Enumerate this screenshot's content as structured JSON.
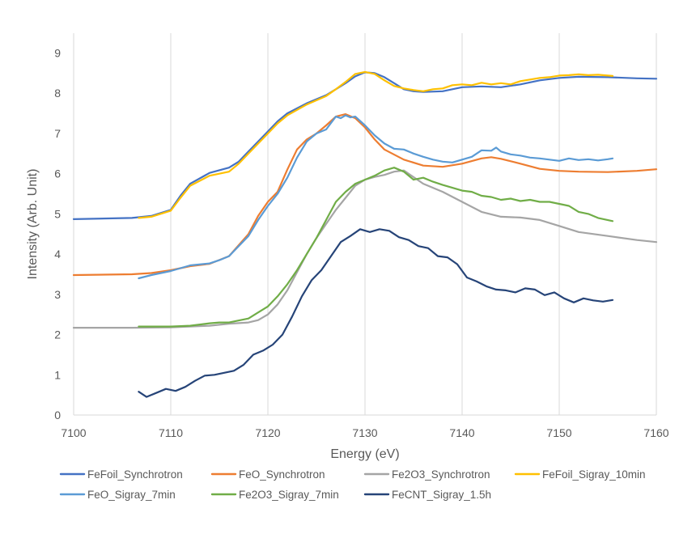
{
  "chart_data": {
    "type": "line",
    "title": "",
    "xlabel": "Energy (eV)",
    "ylabel": "Intensity (Arb. Unit)",
    "xlim": [
      7100,
      7160
    ],
    "ylim": [
      0,
      9.5
    ],
    "xticks": [
      "7100",
      "7110",
      "7120",
      "7130",
      "7140",
      "7150",
      "7160"
    ],
    "yticks": [
      "0",
      "1",
      "2",
      "3",
      "4",
      "5",
      "6",
      "7",
      "8",
      "9"
    ],
    "grid": "vertical",
    "legend_position": "bottom",
    "series": [
      {
        "name": "FeFoil_Synchrotron",
        "color": "#4472C4",
        "x": [
          7100,
          7106,
          7108,
          7110,
          7111,
          7112,
          7114,
          7116,
          7117,
          7118,
          7119,
          7120,
          7121,
          7122,
          7124,
          7126,
          7127,
          7128,
          7129,
          7130,
          7131,
          7132,
          7133,
          7134,
          7135,
          7136,
          7138,
          7140,
          7142,
          7144,
          7146,
          7148,
          7150,
          7152,
          7155,
          7158,
          7160
        ],
        "y": [
          4.87,
          4.9,
          4.95,
          5.1,
          5.45,
          5.75,
          6.02,
          6.15,
          6.3,
          6.55,
          6.8,
          7.05,
          7.3,
          7.5,
          7.75,
          7.95,
          8.1,
          8.25,
          8.42,
          8.52,
          8.5,
          8.4,
          8.25,
          8.1,
          8.05,
          8.03,
          8.05,
          8.15,
          8.17,
          8.15,
          8.22,
          8.32,
          8.38,
          8.41,
          8.4,
          8.37,
          8.36
        ]
      },
      {
        "name": "FeO_Synchrotron",
        "color": "#ED7D31",
        "x": [
          7100,
          7106,
          7108,
          7110,
          7112,
          7114,
          7116,
          7118,
          7119,
          7120,
          7121,
          7122,
          7123,
          7124,
          7125,
          7126,
          7127,
          7128,
          7129,
          7130,
          7131,
          7132,
          7134,
          7136,
          7138,
          7140,
          7142,
          7143,
          7144,
          7146,
          7148,
          7150,
          7152,
          7155,
          7158,
          7160
        ],
        "y": [
          3.48,
          3.5,
          3.53,
          3.6,
          3.7,
          3.76,
          3.95,
          4.5,
          4.95,
          5.3,
          5.55,
          6.1,
          6.6,
          6.85,
          7.0,
          7.2,
          7.42,
          7.48,
          7.38,
          7.15,
          6.85,
          6.6,
          6.35,
          6.2,
          6.17,
          6.25,
          6.38,
          6.41,
          6.37,
          6.25,
          6.12,
          6.07,
          6.05,
          6.04,
          6.07,
          6.11
        ]
      },
      {
        "name": "Fe2O3_Synchrotron",
        "color": "#A5A5A5",
        "x": [
          7100,
          7106,
          7110,
          7114,
          7116,
          7118,
          7119,
          7120,
          7121,
          7122,
          7123,
          7124,
          7125,
          7126,
          7127,
          7128,
          7129,
          7130,
          7131,
          7132,
          7133,
          7134,
          7136,
          7138,
          7140,
          7142,
          7144,
          7146,
          7148,
          7150,
          7152,
          7155,
          7158,
          7160
        ],
        "y": [
          2.17,
          2.17,
          2.18,
          2.22,
          2.27,
          2.3,
          2.36,
          2.5,
          2.75,
          3.1,
          3.55,
          4.0,
          4.4,
          4.75,
          5.1,
          5.4,
          5.7,
          5.85,
          5.92,
          5.97,
          6.05,
          6.08,
          5.75,
          5.55,
          5.3,
          5.05,
          4.93,
          4.91,
          4.85,
          4.7,
          4.55,
          4.45,
          4.35,
          4.3
        ]
      },
      {
        "name": "FeFoil_Sigray_10min",
        "color": "#FFC000",
        "x": [
          7106.7,
          7108,
          7110,
          7111,
          7112,
          7114,
          7116,
          7117,
          7118,
          7119,
          7120,
          7121,
          7122,
          7124,
          7126,
          7127,
          7128,
          7129,
          7130,
          7131,
          7132,
          7133,
          7134,
          7135,
          7136,
          7137,
          7138,
          7139,
          7140,
          7141,
          7142,
          7143,
          7144,
          7145,
          7146,
          7147,
          7148,
          7149,
          7150,
          7151,
          7152,
          7153,
          7154,
          7155.5
        ],
        "y": [
          4.9,
          4.93,
          5.08,
          5.4,
          5.7,
          5.95,
          6.05,
          6.25,
          6.5,
          6.75,
          7.0,
          7.25,
          7.45,
          7.72,
          7.93,
          8.1,
          8.28,
          8.48,
          8.53,
          8.48,
          8.32,
          8.18,
          8.12,
          8.08,
          8.05,
          8.1,
          8.12,
          8.2,
          8.22,
          8.2,
          8.26,
          8.22,
          8.25,
          8.22,
          8.3,
          8.34,
          8.38,
          8.4,
          8.44,
          8.45,
          8.47,
          8.45,
          8.46,
          8.43
        ]
      },
      {
        "name": "FeO_Sigray_7min",
        "color": "#5B9BD5",
        "x": [
          7106.7,
          7108,
          7110,
          7112,
          7114,
          7115,
          7116,
          7118,
          7119,
          7120,
          7121,
          7122,
          7123,
          7124,
          7125,
          7126,
          7127,
          7127.5,
          7128,
          7128.5,
          7129,
          7130,
          7131,
          7132,
          7133,
          7134,
          7135,
          7136,
          7137,
          7138,
          7139,
          7140,
          7141,
          7142,
          7143,
          7143.5,
          7144,
          7145,
          7146,
          7147,
          7148,
          7149,
          7150,
          7151,
          7152,
          7153,
          7154,
          7155,
          7155.5
        ],
        "y": [
          3.4,
          3.48,
          3.58,
          3.72,
          3.77,
          3.85,
          3.95,
          4.45,
          4.85,
          5.2,
          5.5,
          5.9,
          6.4,
          6.8,
          7.0,
          7.1,
          7.42,
          7.38,
          7.45,
          7.4,
          7.42,
          7.2,
          6.95,
          6.75,
          6.62,
          6.6,
          6.5,
          6.42,
          6.35,
          6.3,
          6.28,
          6.35,
          6.42,
          6.58,
          6.57,
          6.65,
          6.55,
          6.48,
          6.45,
          6.4,
          6.38,
          6.35,
          6.32,
          6.38,
          6.34,
          6.36,
          6.33,
          6.36,
          6.38
        ]
      },
      {
        "name": "Fe2O3_Sigray_7min",
        "color": "#70AD47",
        "x": [
          7106.7,
          7108,
          7110,
          7112,
          7114,
          7115,
          7116,
          7118,
          7119,
          7120,
          7121,
          7122,
          7123,
          7124,
          7125,
          7126,
          7127,
          7128,
          7129,
          7130,
          7131,
          7132,
          7133,
          7134,
          7135,
          7136,
          7137,
          7138,
          7139,
          7140,
          7141,
          7142,
          7143,
          7144,
          7145,
          7146,
          7147,
          7148,
          7149,
          7150,
          7151,
          7152,
          7153,
          7154,
          7155.5
        ],
        "y": [
          2.2,
          2.2,
          2.2,
          2.22,
          2.28,
          2.3,
          2.3,
          2.4,
          2.55,
          2.7,
          2.95,
          3.25,
          3.6,
          4.0,
          4.4,
          4.85,
          5.3,
          5.55,
          5.75,
          5.85,
          5.95,
          6.08,
          6.15,
          6.05,
          5.85,
          5.9,
          5.8,
          5.72,
          5.65,
          5.58,
          5.55,
          5.45,
          5.42,
          5.35,
          5.38,
          5.32,
          5.35,
          5.3,
          5.3,
          5.25,
          5.2,
          5.05,
          5.0,
          4.9,
          4.82
        ]
      },
      {
        "name": "FeCNT_Sigray_1.5h",
        "color": "#264478",
        "x": [
          7106.7,
          7107.5,
          7108.5,
          7109.5,
          7110.5,
          7111.5,
          7112.5,
          7113.5,
          7114.5,
          7115.5,
          7116.5,
          7117.5,
          7118.5,
          7119.5,
          7120.5,
          7121.5,
          7122.5,
          7123.5,
          7124.5,
          7125.5,
          7126.5,
          7127.5,
          7128.5,
          7129.5,
          7130.5,
          7131.5,
          7132.5,
          7133.5,
          7134.5,
          7135.5,
          7136.5,
          7137.5,
          7138.5,
          7139.5,
          7140.5,
          7141.5,
          7142.5,
          7143.5,
          7144.5,
          7145.5,
          7146.5,
          7147.5,
          7148.5,
          7149.5,
          7150.5,
          7151.5,
          7152.5,
          7153.5,
          7154.5,
          7155.5
        ],
        "y": [
          0.58,
          0.45,
          0.55,
          0.65,
          0.6,
          0.7,
          0.85,
          0.98,
          1.0,
          1.05,
          1.1,
          1.25,
          1.5,
          1.6,
          1.75,
          2.0,
          2.45,
          2.95,
          3.35,
          3.6,
          3.95,
          4.3,
          4.45,
          4.62,
          4.55,
          4.62,
          4.58,
          4.42,
          4.35,
          4.2,
          4.15,
          3.95,
          3.92,
          3.75,
          3.42,
          3.32,
          3.2,
          3.12,
          3.1,
          3.05,
          3.15,
          3.12,
          2.98,
          3.05,
          2.9,
          2.8,
          2.9,
          2.85,
          2.82,
          2.86
        ]
      }
    ]
  }
}
